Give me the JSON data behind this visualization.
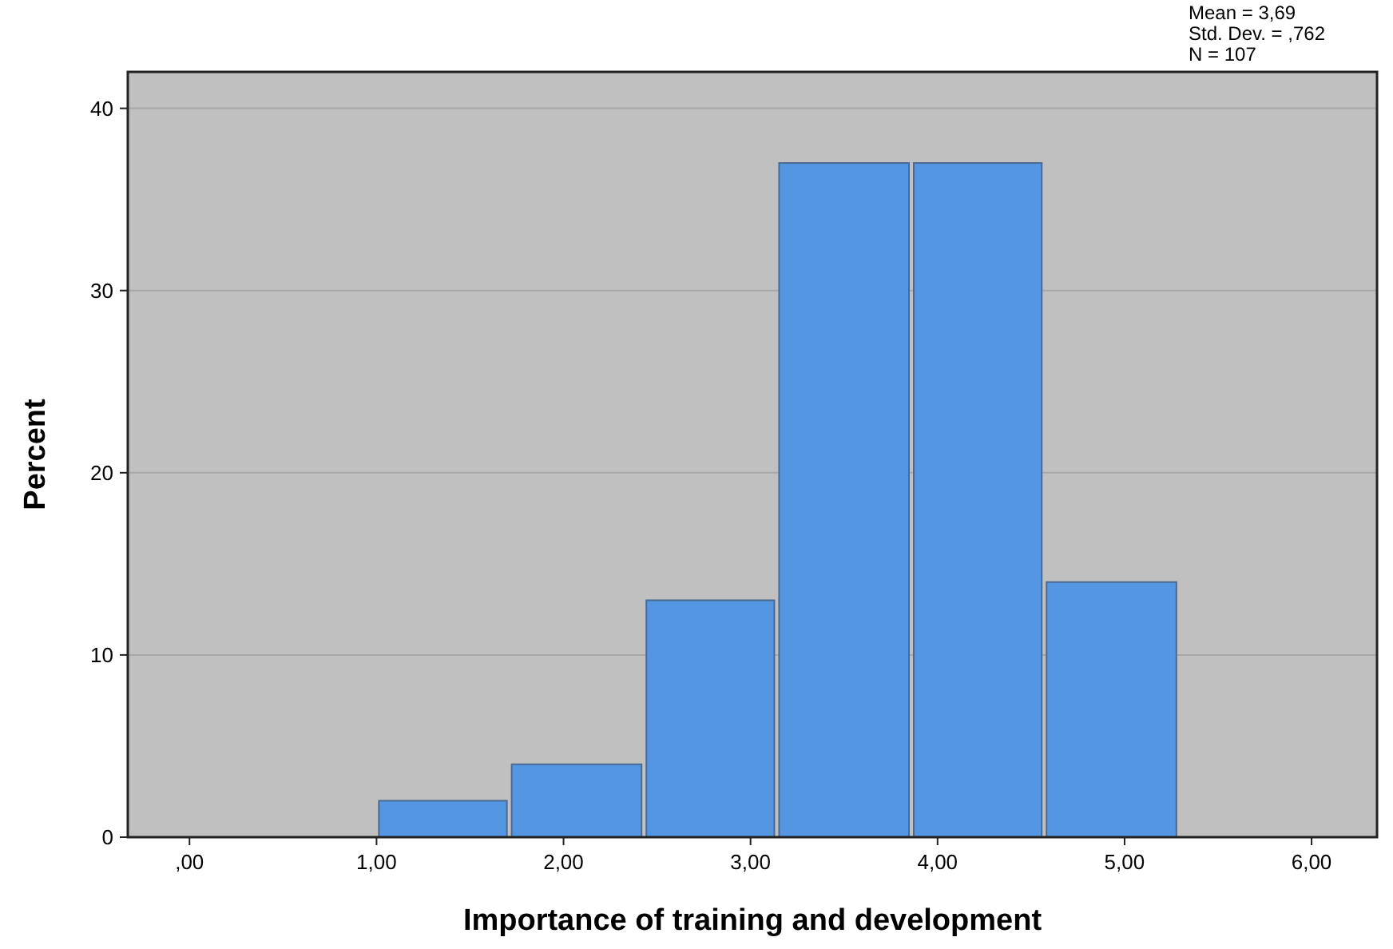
{
  "chart_data": {
    "type": "histogram",
    "xlabel": "Importance of training and development",
    "ylabel": "Percent",
    "bins": [
      1,
      1.71,
      2.43,
      3.14,
      3.86,
      4.57,
      5.29
    ],
    "values": [
      2,
      4,
      13,
      37,
      37,
      14
    ],
    "color": "#5596e2",
    "xlim": [
      -0.33,
      6.35
    ],
    "ylim": [
      0,
      42
    ],
    "xticks": [
      {
        "value": 0,
        "label": ",00"
      },
      {
        "value": 1,
        "label": "1,00"
      },
      {
        "value": 2,
        "label": "2,00"
      },
      {
        "value": 3,
        "label": "3,00"
      },
      {
        "value": 4,
        "label": "4,00"
      },
      {
        "value": 5,
        "label": "5,00"
      },
      {
        "value": 6,
        "label": "6,00"
      }
    ],
    "yticks": [
      0,
      10,
      20,
      30,
      40
    ],
    "grid": "y",
    "annotations": [
      "Mean = 3,69",
      "Std. Dev. = ,762",
      "N = 107"
    ]
  }
}
